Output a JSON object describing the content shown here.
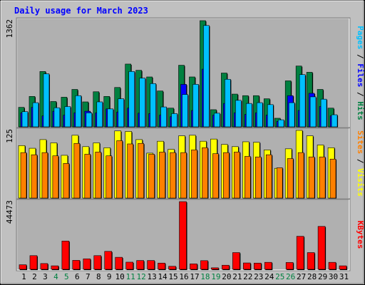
{
  "chart_data": {
    "type": "bar",
    "title": "Daily usage for March 2023",
    "categories": [
      "1",
      "2",
      "3",
      "4",
      "5",
      "6",
      "7",
      "8",
      "9",
      "10",
      "11",
      "12",
      "13",
      "14",
      "15",
      "16",
      "17",
      "18",
      "19",
      "20",
      "21",
      "22",
      "23",
      "24",
      "25",
      "26",
      "27",
      "28",
      "29",
      "30",
      "31"
    ],
    "weekend_days": [
      "4",
      "5",
      "11",
      "12",
      "18",
      "19",
      "25",
      "26"
    ],
    "colors": {
      "hits": "#008040",
      "files": "#0000ff",
      "pages": "#00c0ff",
      "visits": "#ffff00",
      "sites": "#ff8000",
      "kbytes": "#ff0000",
      "title": "#0000ff",
      "weekend_label": "#008040",
      "weekday_label": "#000000",
      "plot_bg": "#b0b0b0",
      "page_bg": "#c0c0c0"
    },
    "panels": [
      {
        "id": "hits-files-pages",
        "ymax_label": "1362",
        "ylim": [
          0,
          1362
        ],
        "side_labels": [
          {
            "text": "Pages",
            "color": "#00c0ff"
          },
          {
            "text": " / ",
            "color": "#000000"
          },
          {
            "text": "Files",
            "color": "#0000ff"
          },
          {
            "text": " / ",
            "color": "#000000"
          },
          {
            "text": "Hits",
            "color": "#008040"
          }
        ],
        "series": [
          {
            "name": "Hits",
            "key": "hits",
            "values": [
              250,
              390,
              710,
              325,
              380,
              480,
              320,
              450,
              390,
              505,
              805,
              725,
              640,
              460,
              240,
              790,
              640,
              1362,
              220,
              690,
              420,
              400,
              400,
              360,
              110,
              590,
              780,
              700,
              480,
              240,
              0
            ]
          },
          {
            "name": "Files",
            "key": "files",
            "values": [
              180,
              250,
              140,
              200,
              150,
              180,
              200,
              180,
              230,
              190,
              240,
              175,
              170,
              150,
              130,
              545,
              210,
              740,
              150,
              300,
              180,
              160,
              180,
              150,
              70,
              400,
              210,
              430,
              260,
              140,
              0
            ]
          },
          {
            "name": "Pages",
            "key": "pages",
            "values": [
              195,
              310,
              680,
              245,
              260,
              400,
              180,
              320,
              230,
              360,
              710,
              625,
              555,
              255,
              170,
              415,
              545,
              1300,
              175,
              610,
              340,
              300,
              310,
              285,
              90,
              310,
              670,
              385,
              355,
              155,
              0
            ]
          }
        ]
      },
      {
        "id": "visits-sites",
        "ymax_label": "125",
        "ylim": [
          0,
          125
        ],
        "side_labels": [
          {
            "text": "Sites",
            "color": "#ff8000"
          },
          {
            "text": " / ",
            "color": "#000000"
          },
          {
            "text": "Visits",
            "color": "#ffff00"
          }
        ],
        "series": [
          {
            "name": "Visits",
            "key": "visits",
            "values": [
              97,
              92,
              108,
              102,
              79,
              116,
              95,
              102,
              93,
              124,
              123,
              108,
              83,
              105,
              90,
              115,
              116,
              105,
              109,
              99,
              95,
              104,
              103,
              89,
              55,
              91,
              125,
              115,
              98,
              93,
              0
            ]
          },
          {
            "name": "Sites",
            "key": "sites",
            "values": [
              84,
              80,
              84,
              78,
              64,
              101,
              81,
              85,
              78,
              106,
              100,
              101,
              81,
              85,
              84,
              84,
              89,
              93,
              82,
              84,
              85,
              77,
              76,
              80,
              56,
              73,
              84,
              76,
              76,
              72,
              0
            ]
          }
        ]
      },
      {
        "id": "kbytes",
        "ymax_label": "44473",
        "ylim": [
          0,
          44473
        ],
        "side_labels": [
          {
            "text": "KBytes",
            "color": "#ff0000"
          }
        ],
        "series": [
          {
            "name": "KBytes",
            "key": "kbytes",
            "values": [
              3000,
              9000,
              3800,
              2300,
              18600,
              5900,
              6900,
              9000,
              11800,
              7900,
              4700,
              5800,
              5800,
              4100,
              2000,
              44473,
              3600,
              5700,
              1000,
              2700,
              11000,
              4200,
              4100,
              4600,
              0,
              4500,
              21700,
              11000,
              28200,
              4600,
              2300
            ]
          }
        ]
      }
    ]
  }
}
